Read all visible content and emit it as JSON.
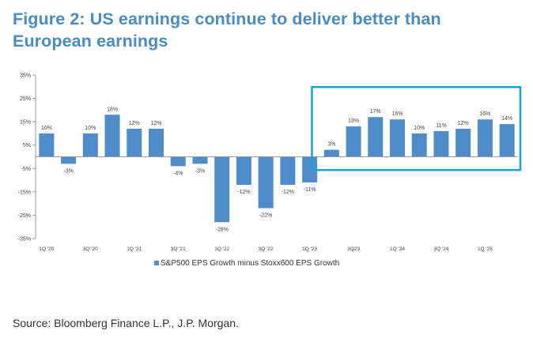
{
  "figure": {
    "title": "Figure 2: US earnings continue to deliver better than European earnings",
    "source": "Source: Bloomberg Finance L.P., J.P. Morgan."
  },
  "colors": {
    "bar": "#4f8cc9",
    "title": "#4a8bc2",
    "highlight_box": "#1aa0dc",
    "axis": "#999999"
  },
  "chart_data": {
    "type": "bar",
    "title": "Figure 2: US earnings continue to deliver better than European earnings",
    "xlabel": "",
    "ylabel": "",
    "ylim": [
      -35,
      35
    ],
    "yticks": [
      35,
      25,
      15,
      5,
      -5,
      -15,
      -25,
      -35
    ],
    "ytick_labels": [
      "35%",
      "25%",
      "15%",
      "5%",
      "-5%",
      "-15%",
      "-25%",
      "-35%"
    ],
    "grid": false,
    "legend_position": "bottom",
    "categories": [
      "1Q'20",
      "2Q'20",
      "3Q'20",
      "4Q'20",
      "1Q'21",
      "2Q'21",
      "3Q'21",
      "4Q'21",
      "1Q'22",
      "2Q'22",
      "3Q'22",
      "4Q'22",
      "1Q'23",
      "2Q'23",
      "3Q23",
      "4Q'23",
      "1Q'24",
      "2Q'24",
      "3Q'24",
      "4Q'24",
      "1Q'25",
      "2Q'25"
    ],
    "x_tick_labels": [
      "1Q '20",
      "",
      "3Q '20",
      "",
      "1Q '21",
      "",
      "3Q '21",
      "",
      "1Q '22",
      "",
      "3Q '22",
      "",
      "1Q '23",
      "",
      "3Q23",
      "",
      "1Q '24",
      "",
      "3Q '24",
      "",
      "1Q '25",
      ""
    ],
    "series": [
      {
        "name": "S&P500 EPS Growth minus Stoxx600 EPS Growth",
        "values": [
          10,
          -3,
          10,
          18,
          12,
          12,
          -4,
          -3,
          -28,
          -12,
          -22,
          -12,
          -11,
          3,
          13,
          17,
          16,
          10,
          11,
          12,
          16,
          14
        ],
        "labels": [
          "10%",
          "-3%",
          "10%",
          "18%",
          "12%",
          "12%",
          "-4%",
          "-3%",
          "-28%",
          "-12%",
          "-22%",
          "-12%",
          "-11%",
          "3%",
          "13%",
          "17%",
          "16%",
          "10%",
          "11%",
          "12%",
          "16%",
          "14%"
        ]
      }
    ],
    "highlight_range": [
      13,
      21
    ]
  }
}
